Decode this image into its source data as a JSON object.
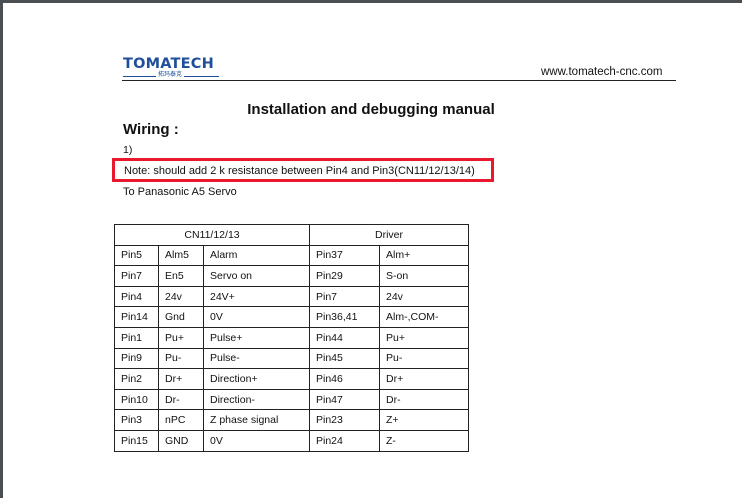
{
  "header": {
    "logo_text": "TOMATECH",
    "logo_subtext": "拓玛泰克",
    "url": "www.tomatech-cnc.com"
  },
  "document": {
    "title": "Installation and debugging manual",
    "section": "Wiring :",
    "item_number": "1)",
    "note": "Note: should add 2 k resistance between Pin4 and Pin3(CN11/12/13/14)",
    "note_highlight_color": "#e8192c",
    "subtitle": "To Panasonic A5 Servo"
  },
  "table": {
    "headers": [
      "CN11/12/13",
      "Driver"
    ],
    "rows": [
      [
        "Pin5",
        "Alm5",
        "Alarm",
        "Pin37",
        "Alm+"
      ],
      [
        "Pin7",
        "En5",
        "Servo on",
        "Pin29",
        "S-on"
      ],
      [
        "Pin4",
        "24v",
        "24V+",
        "Pin7",
        "24v"
      ],
      [
        "Pin14",
        "Gnd",
        "0V",
        "Pin36,41",
        "Alm-,COM-"
      ],
      [
        "Pin1",
        "Pu+",
        "Pulse+",
        "Pin44",
        "Pu+"
      ],
      [
        "Pin9",
        "Pu-",
        "Pulse-",
        "Pin45",
        "Pu-"
      ],
      [
        "Pin2",
        "Dr+",
        "Direction+",
        "Pin46",
        "Dr+"
      ],
      [
        "Pin10",
        "Dr-",
        "Direction-",
        "Pin47",
        "Dr-"
      ],
      [
        "Pin3",
        "nPC",
        "Z phase signal",
        "Pin23",
        "Z+"
      ],
      [
        "Pin15",
        "GND",
        "0V",
        "Pin24",
        "Z-"
      ]
    ]
  }
}
